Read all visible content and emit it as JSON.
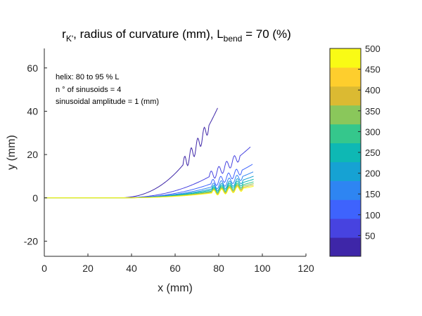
{
  "chart_data": {
    "type": "line",
    "title": {
      "main": "r",
      "main_sub": "K'",
      "middle": ", radius of curvature (mm), L",
      "middle_sub": "bend",
      "end": " = 70 (%)"
    },
    "xlabel": "x (mm)",
    "ylabel": "y (mm)",
    "xlim": [
      0,
      120
    ],
    "ylim": [
      -27,
      69
    ],
    "xticks": [
      0,
      20,
      40,
      60,
      80,
      100,
      120
    ],
    "yticks": [
      -20,
      0,
      20,
      40,
      60
    ],
    "grid": false,
    "annotations": [
      "helix: 80 to 95 % L",
      "n ° of sinusoids = 4",
      "sinusoidal amplitude = 1 (mm)"
    ],
    "bend_start_x": 33,
    "helix_fraction": [
      0.8,
      0.95
    ],
    "sinusoid_count": 4,
    "sinusoid_amplitude": 1,
    "colorbar": {
      "range": [
        0,
        500
      ],
      "ticks": [
        50,
        100,
        150,
        200,
        250,
        300,
        350,
        400,
        450,
        500
      ],
      "colors": [
        "#3e26a8",
        "#4743e0",
        "#3e63fd",
        "#2e85f2",
        "#16a2d3",
        "#0eb8b4",
        "#35c78c",
        "#8ac75b",
        "#dbba32",
        "#fece2d",
        "#f9fb15"
      ]
    },
    "series": [
      {
        "radius": 50,
        "end_x": 79.5,
        "end_y": 41.5,
        "color": "#3e26a8"
      },
      {
        "radius": 100,
        "end_x": 94.5,
        "end_y": 23.5,
        "color": "#4743e0"
      },
      {
        "radius": 150,
        "end_x": 95.5,
        "end_y": 15.5,
        "color": "#3e63fd"
      },
      {
        "radius": 200,
        "end_x": 95.8,
        "end_y": 12.0,
        "color": "#2e85f2"
      },
      {
        "radius": 250,
        "end_x": 96.0,
        "end_y": 10.0,
        "color": "#16a2d3"
      },
      {
        "radius": 300,
        "end_x": 96.0,
        "end_y": 8.6,
        "color": "#0eb8b4"
      },
      {
        "radius": 350,
        "end_x": 96.0,
        "end_y": 7.4,
        "color": "#35c78c"
      },
      {
        "radius": 400,
        "end_x": 96.0,
        "end_y": 6.6,
        "color": "#8ac75b"
      },
      {
        "radius": 450,
        "end_x": 96.0,
        "end_y": 5.9,
        "color": "#dbba32"
      },
      {
        "radius": 500,
        "end_x": 96.0,
        "end_y": 5.3,
        "color": "#f9fb15"
      }
    ]
  }
}
